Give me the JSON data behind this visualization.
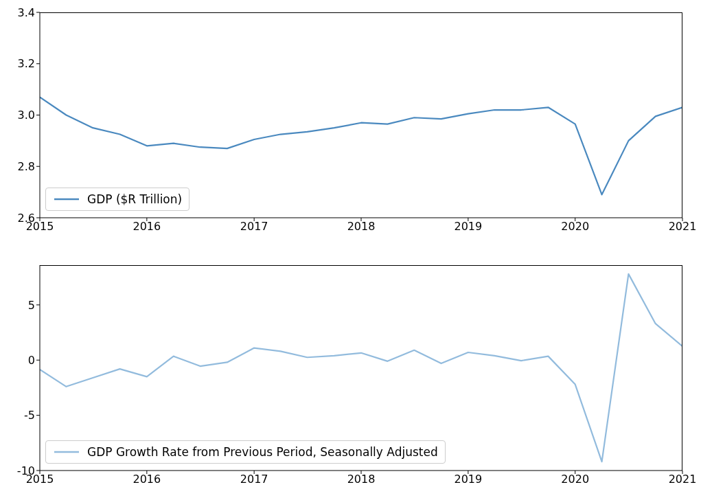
{
  "chart_data": [
    {
      "type": "line",
      "x": [
        "2015-01",
        "2015-04",
        "2015-07",
        "2015-10",
        "2016-01",
        "2016-04",
        "2016-07",
        "2016-10",
        "2017-01",
        "2017-04",
        "2017-07",
        "2017-10",
        "2018-01",
        "2018-04",
        "2018-07",
        "2018-10",
        "2019-01",
        "2019-04",
        "2019-07",
        "2019-10",
        "2020-01",
        "2020-04",
        "2020-07",
        "2020-10",
        "2021-01"
      ],
      "series": [
        {
          "name": "GDP ($R Trillion)",
          "color": "#4a89bf",
          "values": [
            3.07,
            3.0,
            2.95,
            2.925,
            2.88,
            2.89,
            2.875,
            2.87,
            2.905,
            2.925,
            2.935,
            2.95,
            2.97,
            2.965,
            2.99,
            2.985,
            3.005,
            3.02,
            3.02,
            3.03,
            2.965,
            2.69,
            2.9,
            2.995,
            3.03
          ]
        }
      ],
      "xlim": [
        "2015",
        "2021"
      ],
      "xticks": [
        "2015",
        "2016",
        "2017",
        "2018",
        "2019",
        "2020",
        "2021"
      ],
      "ylim": [
        2.6,
        3.4
      ],
      "yticks": [
        2.6,
        2.8,
        {
          "value": 3,
          "label": "3.0"
        },
        3.2,
        3.4
      ],
      "legend": "bottom left",
      "grid": false,
      "marker": "none",
      "line_style": "solid"
    },
    {
      "type": "line",
      "x": [
        "2015-01",
        "2015-04",
        "2015-07",
        "2015-10",
        "2016-01",
        "2016-04",
        "2016-07",
        "2016-10",
        "2017-01",
        "2017-04",
        "2017-07",
        "2017-10",
        "2018-01",
        "2018-04",
        "2018-07",
        "2018-10",
        "2019-01",
        "2019-04",
        "2019-07",
        "2019-10",
        "2020-01",
        "2020-04",
        "2020-07",
        "2020-10",
        "2021-01"
      ],
      "series": [
        {
          "name": "GDP Growth Rate from Previous Period, Seasonally Adjusted",
          "color": "#92bbdd",
          "values": [
            -0.85,
            -2.4,
            -1.6,
            -0.8,
            -1.5,
            0.35,
            -0.55,
            -0.2,
            1.1,
            0.8,
            0.25,
            0.4,
            0.65,
            -0.1,
            0.9,
            -0.3,
            0.7,
            0.4,
            -0.05,
            0.35,
            -2.2,
            -9.2,
            7.8,
            3.3,
            1.25
          ]
        }
      ],
      "xlim": [
        "2015",
        "2021"
      ],
      "xticks": [
        "2015",
        "2016",
        "2017",
        "2018",
        "2019",
        "2020",
        "2021"
      ],
      "ylim": [
        -10,
        8.6
      ],
      "yticks": [
        -10,
        -5,
        0,
        5
      ],
      "legend": "bottom left",
      "grid": false,
      "marker": "none",
      "line_style": "solid"
    }
  ]
}
